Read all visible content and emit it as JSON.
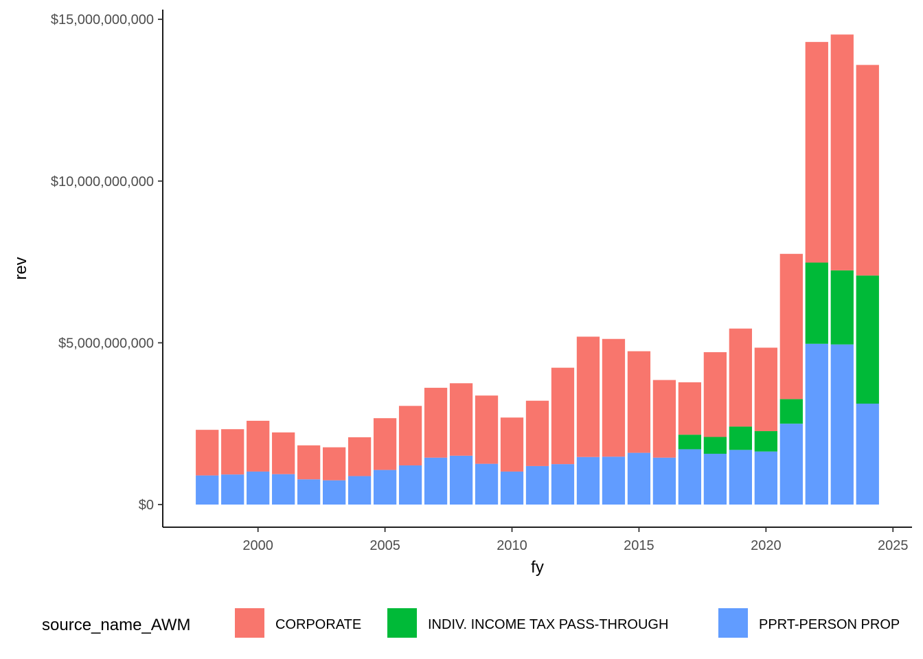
{
  "chart_data": {
    "type": "bar",
    "stacked": true,
    "xlabel": "fy",
    "ylabel": "rev",
    "xlim": [
      1996.25,
      2025.75
    ],
    "ylim": [
      -700000000,
      15300000000
    ],
    "x_ticks": [
      2000,
      2005,
      2010,
      2015,
      2020,
      2025
    ],
    "x_tick_labels": [
      "2000",
      "2005",
      "2010",
      "2015",
      "2020",
      "2025"
    ],
    "y_ticks": [
      0,
      5000000000,
      10000000000,
      15000000000
    ],
    "y_tick_labels": [
      "$0",
      "$5,000,000,000",
      "$10,000,000,000",
      "$15,000,000,000"
    ],
    "grid": false,
    "legend": {
      "position": "bottom",
      "title": "source_name_AWM"
    },
    "x": [
      1998,
      1999,
      2000,
      2001,
      2002,
      2003,
      2004,
      2005,
      2006,
      2007,
      2008,
      2009,
      2010,
      2011,
      2012,
      2013,
      2014,
      2015,
      2016,
      2017,
      2018,
      2019,
      2020,
      2021,
      2022,
      2023,
      2024
    ],
    "series": [
      {
        "name": "PPRT-PERSON PROP",
        "color": "#619CFF",
        "values": [
          900000000,
          930000000,
          1020000000,
          940000000,
          780000000,
          750000000,
          880000000,
          1070000000,
          1210000000,
          1450000000,
          1510000000,
          1260000000,
          1020000000,
          1190000000,
          1250000000,
          1470000000,
          1480000000,
          1600000000,
          1450000000,
          1710000000,
          1570000000,
          1690000000,
          1640000000,
          2500000000,
          4970000000,
          4950000000,
          3120000000
        ]
      },
      {
        "name": "INDIV. INCOME TAX PASS-THROUGH",
        "color": "#00BA38",
        "values": [
          0,
          0,
          0,
          0,
          0,
          0,
          0,
          0,
          0,
          0,
          0,
          0,
          0,
          0,
          0,
          0,
          0,
          0,
          0,
          450000000,
          520000000,
          720000000,
          630000000,
          760000000,
          2510000000,
          2290000000,
          3960000000
        ]
      },
      {
        "name": "CORPORATE",
        "color": "#F8766D",
        "values": [
          1410000000,
          1400000000,
          1570000000,
          1290000000,
          1050000000,
          1020000000,
          1200000000,
          1600000000,
          1840000000,
          2160000000,
          2240000000,
          2110000000,
          1670000000,
          2020000000,
          2980000000,
          3720000000,
          3640000000,
          3140000000,
          2400000000,
          1620000000,
          2620000000,
          3030000000,
          2580000000,
          4490000000,
          6820000000,
          7290000000,
          6510000000
        ]
      }
    ],
    "legend_order": [
      "CORPORATE",
      "INDIV. INCOME TAX PASS-THROUGH",
      "PPRT-PERSON PROP"
    ]
  }
}
